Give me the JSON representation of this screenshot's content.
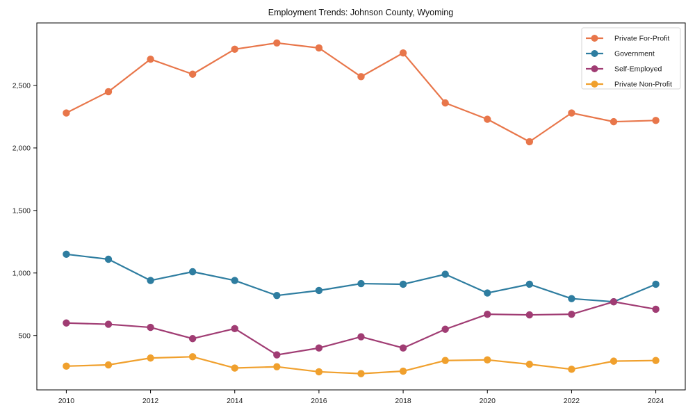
{
  "chart_data": {
    "type": "line",
    "title": "Employment Trends: Johnson County, Wyoming",
    "x": [
      2010,
      2011,
      2012,
      2013,
      2014,
      2015,
      2016,
      2017,
      2018,
      2019,
      2020,
      2021,
      2022,
      2023,
      2024
    ],
    "series": [
      {
        "name": "Private For-Profit",
        "color": "#e8764a",
        "values": [
          2280,
          2450,
          2710,
          2590,
          2790,
          2840,
          2800,
          2570,
          2760,
          2360,
          2230,
          2050,
          2280,
          2210,
          2220
        ]
      },
      {
        "name": "Government",
        "color": "#2e7da0",
        "values": [
          1150,
          1110,
          940,
          1010,
          940,
          820,
          860,
          915,
          910,
          990,
          840,
          910,
          795,
          770,
          910
        ]
      },
      {
        "name": "Self-Employed",
        "color": "#a03c73",
        "values": [
          600,
          590,
          565,
          475,
          555,
          345,
          400,
          490,
          400,
          550,
          670,
          665,
          670,
          770,
          710
        ]
      },
      {
        "name": "Private Non-Profit",
        "color": "#f0a02d",
        "values": [
          255,
          265,
          320,
          330,
          240,
          250,
          210,
          195,
          215,
          300,
          305,
          270,
          230,
          295,
          300
        ]
      }
    ],
    "xticks": {
      "values": [
        2010,
        2012,
        2014,
        2016,
        2018,
        2020,
        2022,
        2024
      ],
      "labels": [
        "2010",
        "2012",
        "2014",
        "2016",
        "2018",
        "2020",
        "2022",
        "2024"
      ]
    },
    "yticks": {
      "values": [
        500,
        1000,
        1500,
        2000,
        2500
      ],
      "labels": [
        "500",
        "1,000",
        "1,500",
        "2,000",
        "2,500"
      ]
    },
    "xlim": [
      2009.3,
      2024.7
    ],
    "ylim": [
      65,
      3000
    ],
    "grid": false,
    "legend": {
      "position": "top-right",
      "border_color": "#d4d4d4",
      "background": "#ffffff"
    },
    "axis_color": "#000000",
    "background": "#ffffff"
  }
}
